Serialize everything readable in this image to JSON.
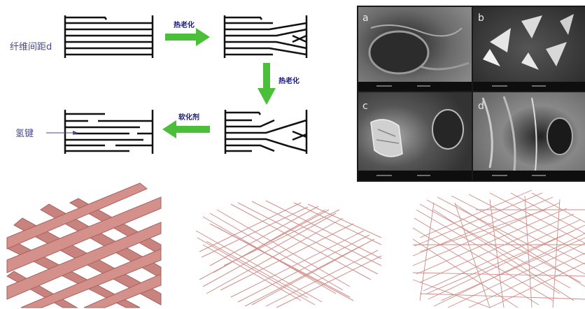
{
  "labels": {
    "fiber_spacing": "纤维间距d",
    "hydrogen_bond": "氢键",
    "heat_aging_1": "热老化",
    "heat_aging_2": "热老化",
    "softener": "软化剂"
  },
  "sem_panels": [
    "a",
    "b",
    "c",
    "d"
  ],
  "colors": {
    "arrow_green": "#4cbf3a",
    "line_black": "#111111",
    "fiber_pink": "#c9837f",
    "fiber_pink_light": "#e2a09c",
    "sem_dark": "#3a3a3a"
  }
}
